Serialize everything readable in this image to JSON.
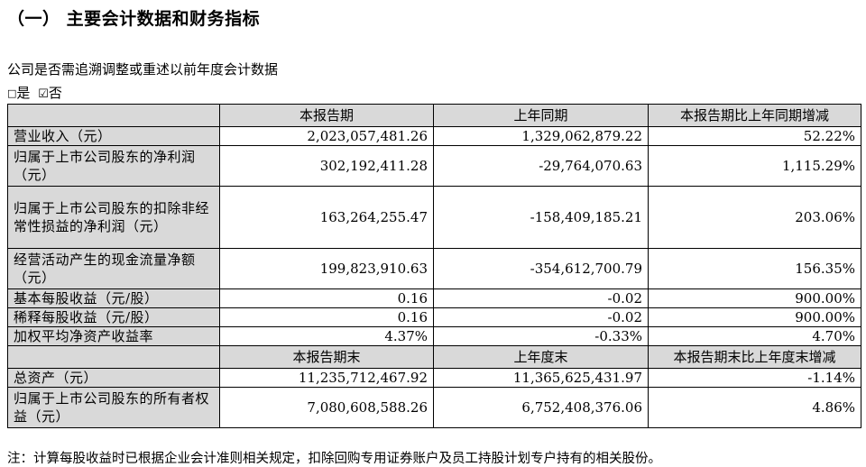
{
  "section_title": "（一） 主要会计数据和财务指标",
  "question": "公司是否需追溯调整或重述以前年度会计数据",
  "choice": {
    "yes_box": "□",
    "yes_label": "是",
    "no_box": "☑",
    "no_label": "否"
  },
  "table": {
    "header1": [
      "本报告期",
      "上年同期",
      "本报告期比上年同期增减"
    ],
    "rows1": [
      {
        "label": "营业收入（元）",
        "current": "2,023,057,481.26",
        "prior": "1,329,062,879.22",
        "change": "52.22%"
      },
      {
        "label": "归属于上市公司股东的净利润（元）",
        "current": "302,192,411.28",
        "prior": "-29,764,070.63",
        "change": "1,115.29%"
      },
      {
        "label": "归属于上市公司股东的扣除非经常性损益的净利润（元）",
        "current": "163,264,255.47",
        "prior": "-158,409,185.21",
        "change": "203.06%"
      },
      {
        "label": "经营活动产生的现金流量净额（元）",
        "current": "199,823,910.63",
        "prior": "-354,612,700.79",
        "change": "156.35%"
      },
      {
        "label": "基本每股收益（元/股）",
        "current": "0.16",
        "prior": "-0.02",
        "change": "900.00%"
      },
      {
        "label": "稀释每股收益（元/股）",
        "current": "0.16",
        "prior": "-0.02",
        "change": "900.00%"
      },
      {
        "label": "加权平均净资产收益率",
        "current": "4.37%",
        "prior": "-0.33%",
        "change": "4.70%"
      }
    ],
    "header2": [
      "本报告期末",
      "上年度末",
      "本报告期末比上年度末增减"
    ],
    "rows2": [
      {
        "label": "总资产（元）",
        "current": "11,235,712,467.92",
        "prior": "11,365,625,431.97",
        "change": "-1.14%"
      },
      {
        "label": "归属于上市公司股东的所有者权益（元）",
        "current": "7,080,608,588.26",
        "prior": "6,752,408,376.06",
        "change": "4.86%"
      }
    ]
  },
  "note": "注：计算每股收益时已根据企业会计准则相关规定，扣除回购专用证券账户及员工持股计划专户持有的相关股份。"
}
